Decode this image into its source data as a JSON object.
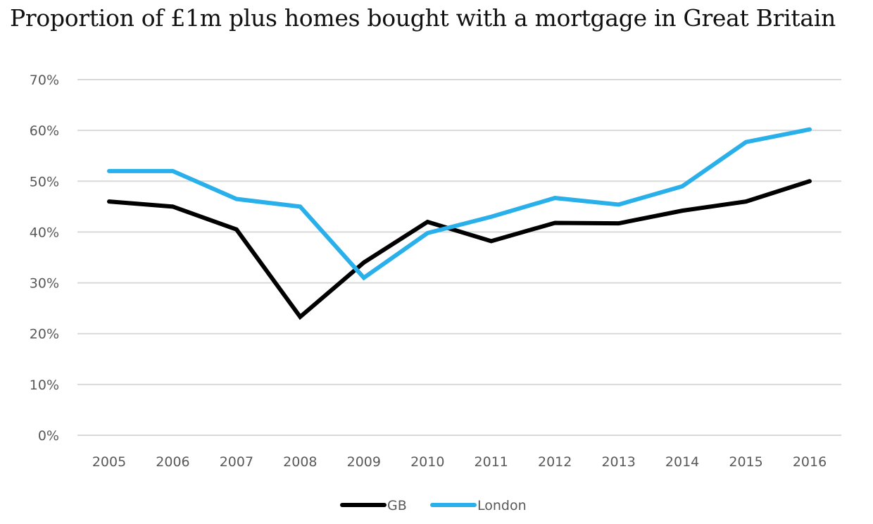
{
  "chart_data": {
    "type": "line",
    "title": "Proportion of £1m plus homes bought with a mortgage in Great Britain",
    "xlabel": "",
    "ylabel": "",
    "categories": [
      "2005",
      "2006",
      "2007",
      "2008",
      "2009",
      "2010",
      "2011",
      "2012",
      "2013",
      "2014",
      "2015",
      "2016"
    ],
    "y_ticks": [
      "0%",
      "10%",
      "20%",
      "30%",
      "40%",
      "50%",
      "60%",
      "70%"
    ],
    "ylim": [
      0,
      70
    ],
    "grid": true,
    "legend_position": "bottom-center",
    "series": [
      {
        "name": "GB",
        "color": "#000000",
        "values": [
          46.0,
          45.0,
          40.5,
          23.3,
          34.0,
          42.0,
          38.2,
          41.8,
          41.7,
          44.2,
          46.0,
          50.0
        ]
      },
      {
        "name": "London",
        "color": "#29b0ea",
        "values": [
          52.0,
          52.0,
          46.5,
          45.0,
          31.0,
          39.8,
          43.0,
          46.7,
          45.4,
          49.0,
          57.7,
          60.2
        ]
      }
    ]
  }
}
